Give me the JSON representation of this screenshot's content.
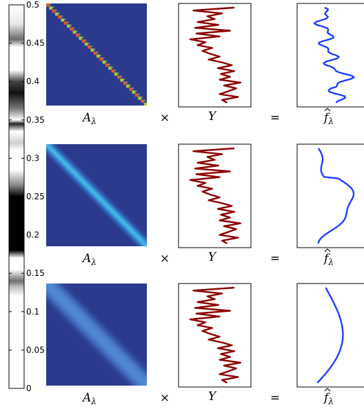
{
  "colorbar": {
    "ticks": [
      "0.5",
      "0.45",
      "0.4",
      "0.35",
      "0.3",
      "0.25",
      "0.2",
      "0.15",
      "0.1",
      "0.05",
      "0"
    ],
    "tick_values": [
      0.5,
      0.45,
      0.4,
      0.35,
      0.3,
      0.25,
      0.2,
      0.15,
      0.1,
      0.05,
      0
    ],
    "range": [
      0,
      0.5
    ]
  },
  "colors": {
    "matrix_background": "#2b3a8c",
    "observation_line": "#8b0000",
    "estimate_line": "#1f3fff",
    "diagonal_row1_a": "#a8c83c",
    "diagonal_row1_b": "#e0583a",
    "diagonal_row2": "#49c4e6",
    "diagonal_row3": "#4b7fd0"
  },
  "rows": [
    {
      "matrix_label": "A",
      "matrix_subscript": "λ",
      "times": "×",
      "obs_label": "Y",
      "equals": "=",
      "estimate_label": "f",
      "estimate_subscript": "λ",
      "diagonal_style": "sharp"
    },
    {
      "matrix_label": "A",
      "matrix_subscript": "λ",
      "times": "×",
      "obs_label": "Y",
      "equals": "=",
      "estimate_label": "f",
      "estimate_subscript": "λ",
      "diagonal_style": "medium"
    },
    {
      "matrix_label": "A",
      "matrix_subscript": "λ",
      "times": "×",
      "obs_label": "Y",
      "equals": "=",
      "estimate_label": "f",
      "estimate_subscript": "λ",
      "diagonal_style": "wide"
    }
  ]
}
